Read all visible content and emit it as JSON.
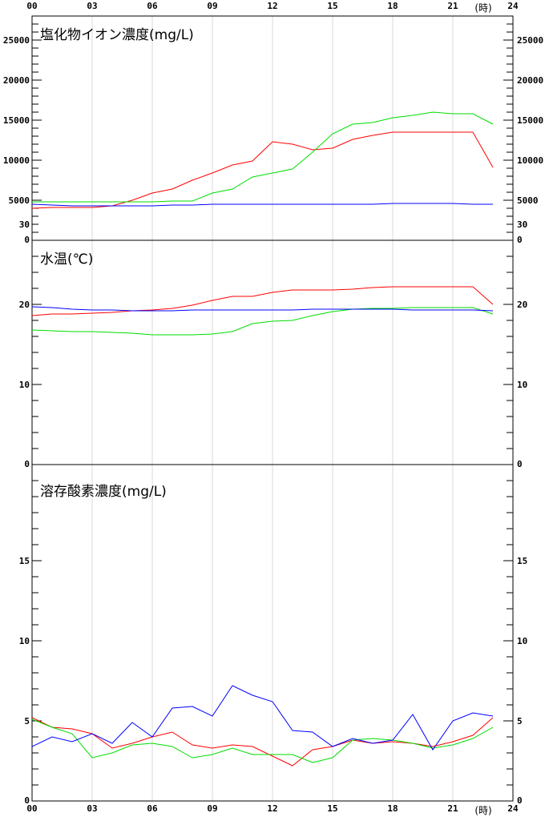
{
  "x_unit": "(時)",
  "series_colors": [
    "#ff0000",
    "#00dd00",
    "#0000ff"
  ],
  "chart_data": [
    {
      "type": "line",
      "title": "塩化物イオン濃度(mg/L)",
      "xlim": [
        0,
        24
      ],
      "ylim": [
        0,
        28000
      ],
      "x_ticks": [
        "00",
        "03",
        "06",
        "09",
        "12",
        "15",
        "18",
        "21",
        "24"
      ],
      "y_ticks": [
        0,
        5000,
        10000,
        15000,
        20000,
        25000
      ],
      "minor_y_step": 1000,
      "x": [
        0,
        1,
        2,
        3,
        4,
        5,
        6,
        7,
        8,
        9,
        10,
        11,
        12,
        13,
        14,
        15,
        16,
        17,
        18,
        19,
        20,
        21,
        22,
        23
      ],
      "series": [
        {
          "color": "#ff0000",
          "values": [
            4000,
            4100,
            4100,
            4100,
            4300,
            5000,
            5900,
            6400,
            7500,
            8400,
            9400,
            9900,
            12300,
            12000,
            11300,
            11500,
            12600,
            13100,
            13500,
            13500,
            13500,
            13500,
            13500,
            9100
          ]
        },
        {
          "color": "#00dd00",
          "values": [
            4800,
            4800,
            4800,
            4800,
            4800,
            4800,
            4800,
            4900,
            4900,
            5900,
            6400,
            7900,
            8400,
            8900,
            11000,
            13300,
            14500,
            14700,
            15300,
            15600,
            16000,
            15800,
            15800,
            14500
          ]
        },
        {
          "color": "#0000ff",
          "values": [
            4500,
            4400,
            4300,
            4300,
            4300,
            4300,
            4300,
            4400,
            4400,
            4500,
            4500,
            4500,
            4500,
            4500,
            4500,
            4500,
            4500,
            4500,
            4600,
            4600,
            4600,
            4600,
            4500,
            4500
          ]
        }
      ]
    },
    {
      "type": "line",
      "title": "水温(℃)",
      "xlim": [
        0,
        24
      ],
      "ylim": [
        0,
        28
      ],
      "x_ticks": [
        "00",
        "03",
        "06",
        "09",
        "12",
        "15",
        "18",
        "21",
        "24"
      ],
      "y_ticks": [
        0,
        10,
        20,
        30
      ],
      "minor_y_step": 2,
      "x": [
        0,
        1,
        2,
        3,
        4,
        5,
        6,
        7,
        8,
        9,
        10,
        11,
        12,
        13,
        14,
        15,
        16,
        17,
        18,
        19,
        20,
        21,
        22,
        23
      ],
      "series": [
        {
          "color": "#ff0000",
          "values": [
            18.6,
            18.8,
            18.8,
            18.9,
            19.0,
            19.2,
            19.3,
            19.5,
            19.9,
            20.5,
            21.0,
            21.0,
            21.5,
            21.8,
            21.8,
            21.8,
            21.9,
            22.1,
            22.2,
            22.2,
            22.2,
            22.2,
            22.2,
            20.0
          ]
        },
        {
          "color": "#00dd00",
          "values": [
            16.8,
            16.7,
            16.6,
            16.6,
            16.5,
            16.4,
            16.2,
            16.2,
            16.2,
            16.3,
            16.6,
            17.6,
            17.9,
            18.0,
            18.6,
            19.1,
            19.4,
            19.5,
            19.5,
            19.6,
            19.6,
            19.6,
            19.6,
            18.8
          ]
        },
        {
          "color": "#0000ff",
          "values": [
            19.7,
            19.6,
            19.4,
            19.3,
            19.3,
            19.2,
            19.2,
            19.2,
            19.3,
            19.3,
            19.3,
            19.3,
            19.3,
            19.3,
            19.4,
            19.4,
            19.4,
            19.4,
            19.4,
            19.3,
            19.3,
            19.3,
            19.3,
            19.2
          ]
        }
      ]
    },
    {
      "type": "line",
      "title": "溶存酸素濃度(mg/L)",
      "xlim": [
        0,
        24
      ],
      "ylim": [
        0,
        21
      ],
      "x_ticks": [
        "00",
        "03",
        "06",
        "09",
        "12",
        "15",
        "18",
        "21",
        "24"
      ],
      "y_ticks": [
        0,
        5,
        10,
        15
      ],
      "minor_y_step": 1,
      "x": [
        0,
        1,
        2,
        3,
        4,
        5,
        6,
        7,
        8,
        9,
        10,
        11,
        12,
        13,
        14,
        15,
        16,
        17,
        18,
        19,
        20,
        21,
        22,
        23
      ],
      "series": [
        {
          "color": "#ff0000",
          "values": [
            5.2,
            4.6,
            4.5,
            4.2,
            3.3,
            3.6,
            4.0,
            4.3,
            3.5,
            3.3,
            3.5,
            3.4,
            2.8,
            2.2,
            3.2,
            3.4,
            3.8,
            3.6,
            3.7,
            3.6,
            3.4,
            3.7,
            4.1,
            5.2
          ]
        },
        {
          "color": "#00dd00",
          "values": [
            5.1,
            4.6,
            4.2,
            2.7,
            3.0,
            3.5,
            3.6,
            3.4,
            2.7,
            2.9,
            3.3,
            2.9,
            2.9,
            2.9,
            2.4,
            2.7,
            3.8,
            3.9,
            3.8,
            3.6,
            3.3,
            3.5,
            3.9,
            4.6
          ]
        },
        {
          "color": "#0000ff",
          "values": [
            3.4,
            4.0,
            3.7,
            4.2,
            3.6,
            4.9,
            4.0,
            5.8,
            5.9,
            5.3,
            7.2,
            6.6,
            6.2,
            4.4,
            4.3,
            3.4,
            3.9,
            3.6,
            3.8,
            5.4,
            3.2,
            5.0,
            5.5,
            5.3
          ]
        }
      ]
    }
  ]
}
